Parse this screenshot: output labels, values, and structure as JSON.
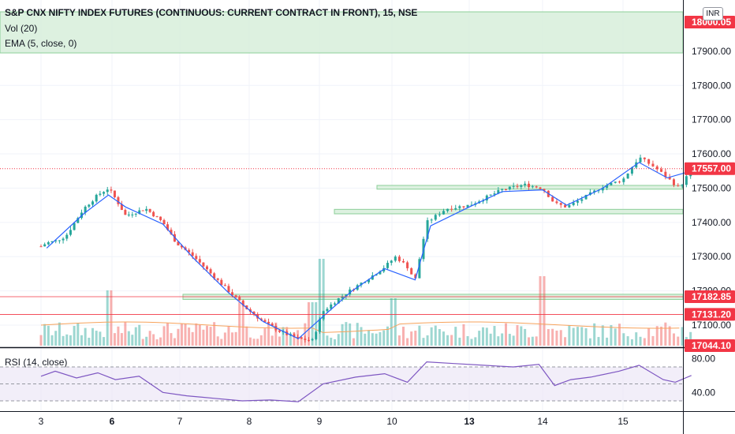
{
  "legend": {
    "title": "S&P CNX NIFTY INDEX FUTURES (CONTINUOUS: CURRENT CONTRACT IN FRONT), 15, NSE",
    "volume": "Vol (20)",
    "ema": "EMA (5, close, 0)",
    "rsi": "RSI (14, close)"
  },
  "currency": "INR",
  "colors": {
    "up": "#26a69a",
    "down": "#ef5350",
    "ema": "#2962ff",
    "vol_ma": "#f7a35c",
    "rsi_line": "#7e57c2",
    "rsi_band": "#ede7f6",
    "zone": "#d9f0dd",
    "zone_border": "#8ccf98",
    "price_tag": "#f23645"
  },
  "chart_data": {
    "type": "candlestick",
    "price_axis": {
      "ticks": [
        "17900.00",
        "17800.00",
        "17700.00",
        "17600.00",
        "17500.00",
        "17400.00",
        "17300.00",
        "17200.00",
        "17100.00"
      ],
      "ylim": [
        17040,
        18015
      ]
    },
    "x_axis": {
      "ticks": [
        {
          "label": "3",
          "bold": false
        },
        {
          "label": "6",
          "bold": true
        },
        {
          "label": "7",
          "bold": false
        },
        {
          "label": "8",
          "bold": false
        },
        {
          "label": "9",
          "bold": false
        },
        {
          "label": "10",
          "bold": false
        },
        {
          "label": "13",
          "bold": true
        },
        {
          "label": "14",
          "bold": false
        },
        {
          "label": "15",
          "bold": false
        }
      ]
    },
    "price_labels": [
      {
        "text": "18000.05",
        "value": 18000.05
      },
      {
        "text": "17557.00",
        "value": 17557.0
      },
      {
        "text": "17182.85",
        "value": 17182.85
      },
      {
        "text": "17131.20",
        "value": 17131.2
      },
      {
        "text": "17044.10",
        "value": 17044.1
      }
    ],
    "zones": [
      {
        "from": 17895,
        "to": 18015
      },
      {
        "from": 17497,
        "to": 17508
      },
      {
        "from": 17425,
        "to": 17438
      },
      {
        "from": 17175,
        "to": 17190
      }
    ],
    "price_path": [
      [
        0,
        17330
      ],
      [
        0.08,
        17340
      ],
      [
        0.2,
        17345
      ],
      [
        0.35,
        17360
      ],
      [
        0.6,
        17440
      ],
      [
        0.8,
        17480
      ],
      [
        0.95,
        17500
      ],
      [
        1.05,
        17470
      ],
      [
        1.2,
        17420
      ],
      [
        1.5,
        17440
      ],
      [
        1.75,
        17400
      ],
      [
        1.95,
        17340
      ],
      [
        2.2,
        17300
      ],
      [
        2.45,
        17250
      ],
      [
        2.7,
        17200
      ],
      [
        2.95,
        17150
      ],
      [
        3.2,
        17110
      ],
      [
        3.45,
        17080
      ],
      [
        3.7,
        17060
      ],
      [
        3.9,
        17055
      ],
      [
        4.05,
        17140
      ],
      [
        4.25,
        17175
      ],
      [
        4.45,
        17205
      ],
      [
        4.7,
        17240
      ],
      [
        4.9,
        17270
      ],
      [
        5.05,
        17300
      ],
      [
        5.2,
        17270
      ],
      [
        5.3,
        17230
      ],
      [
        5.45,
        17400
      ],
      [
        5.7,
        17440
      ],
      [
        6.0,
        17450
      ],
      [
        6.25,
        17475
      ],
      [
        6.45,
        17495
      ],
      [
        6.75,
        17510
      ],
      [
        7.0,
        17500
      ],
      [
        7.15,
        17455
      ],
      [
        7.3,
        17445
      ],
      [
        7.5,
        17470
      ],
      [
        7.75,
        17505
      ],
      [
        8.0,
        17525
      ],
      [
        8.2,
        17590
      ],
      [
        8.4,
        17560
      ],
      [
        8.55,
        17530
      ],
      [
        8.7,
        17500
      ],
      [
        8.85,
        17555
      ]
    ],
    "ema_path": [
      [
        0.08,
        17325
      ],
      [
        0.6,
        17425
      ],
      [
        0.95,
        17480
      ],
      [
        1.2,
        17445
      ],
      [
        1.75,
        17395
      ],
      [
        2.2,
        17295
      ],
      [
        2.7,
        17195
      ],
      [
        3.2,
        17110
      ],
      [
        3.7,
        17060
      ],
      [
        4.05,
        17125
      ],
      [
        4.45,
        17200
      ],
      [
        4.9,
        17265
      ],
      [
        5.3,
        17232
      ],
      [
        5.5,
        17390
      ],
      [
        6.0,
        17445
      ],
      [
        6.45,
        17490
      ],
      [
        7.0,
        17495
      ],
      [
        7.3,
        17450
      ],
      [
        7.75,
        17500
      ],
      [
        8.2,
        17575
      ],
      [
        8.55,
        17530
      ],
      [
        8.85,
        17550
      ]
    ],
    "rsi_axis": {
      "ticks": [
        "80.00",
        "40.00"
      ],
      "band": [
        30,
        70
      ]
    },
    "rsi_path": [
      [
        0,
        59
      ],
      [
        0.2,
        65
      ],
      [
        0.5,
        57
      ],
      [
        0.8,
        63
      ],
      [
        1.05,
        55
      ],
      [
        1.4,
        59
      ],
      [
        1.75,
        40
      ],
      [
        2.1,
        36
      ],
      [
        2.5,
        33
      ],
      [
        2.9,
        30
      ],
      [
        3.3,
        31
      ],
      [
        3.7,
        29
      ],
      [
        4.05,
        50
      ],
      [
        4.5,
        58
      ],
      [
        4.9,
        62
      ],
      [
        5.2,
        52
      ],
      [
        5.45,
        76
      ],
      [
        5.8,
        74
      ],
      [
        6.2,
        72
      ],
      [
        6.6,
        70
      ],
      [
        6.95,
        73
      ],
      [
        7.15,
        48
      ],
      [
        7.35,
        55
      ],
      [
        7.6,
        58
      ],
      [
        7.95,
        65
      ],
      [
        8.2,
        72
      ],
      [
        8.5,
        55
      ],
      [
        8.65,
        52
      ],
      [
        8.85,
        60
      ]
    ]
  }
}
